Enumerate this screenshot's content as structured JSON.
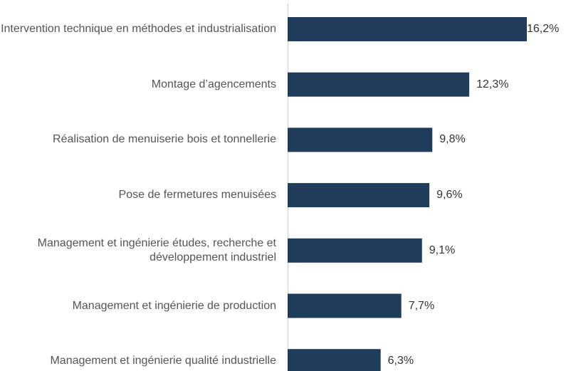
{
  "chart_data": {
    "type": "barh",
    "categories": [
      "Intervention technique en méthodes et industrialisation",
      "Montage d’agencements",
      "Réalisation de menuiserie bois et tonnellerie",
      "Pose de fermetures menuisées",
      "Management et ingénierie études, recherche et développement industriel",
      "Management et ingénierie de production",
      "Management et ingénierie qualité industrielle"
    ],
    "values": [
      16.2,
      12.3,
      9.8,
      9.6,
      9.1,
      7.7,
      6.3
    ],
    "value_labels": [
      "16,2%",
      "12,3%",
      "9,8%",
      "9,6%",
      "9,1%",
      "7,7%",
      "6,3%"
    ],
    "color": "#1f3d5a"
  }
}
